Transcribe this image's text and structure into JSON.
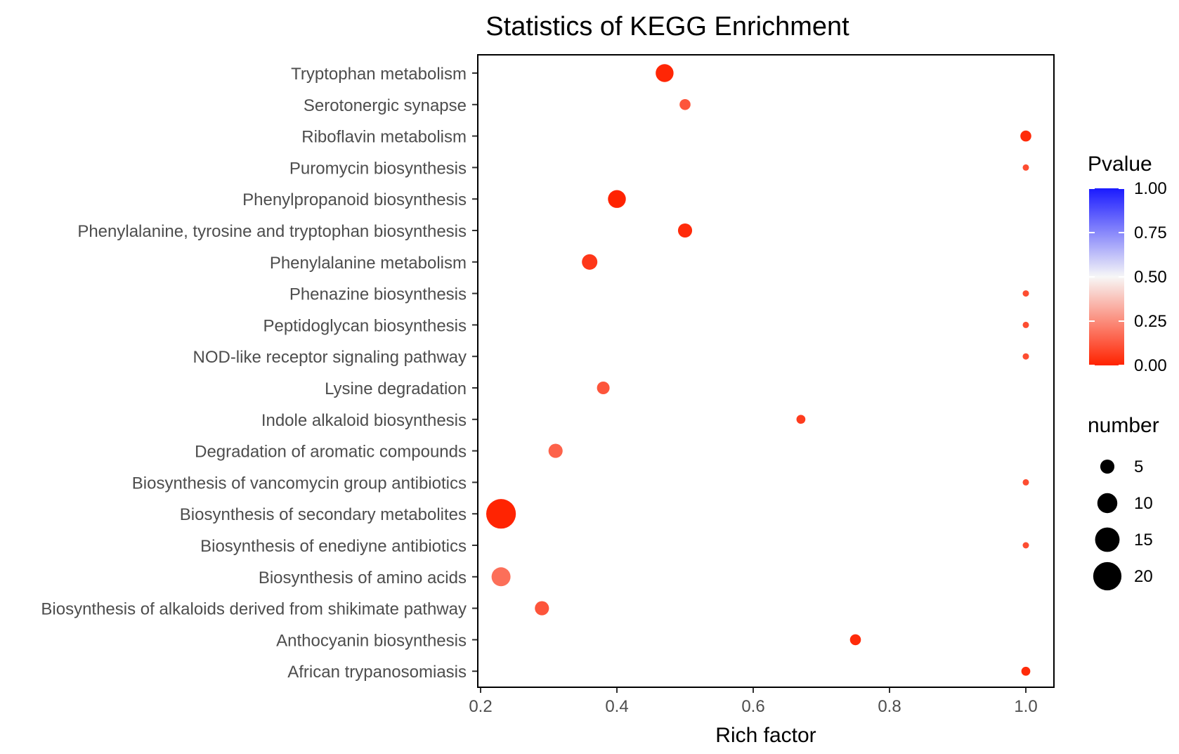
{
  "chart_data": {
    "type": "scatter",
    "title": "Statistics of KEGG Enrichment",
    "xlabel": "Rich factor",
    "ylabel": "",
    "xlim": [
      0.2,
      1.0
    ],
    "xticks": [
      0.2,
      0.4,
      0.6,
      0.8,
      1.0
    ],
    "xtick_labels": [
      "0.2",
      "0.4",
      "0.6",
      "0.8",
      "1.0"
    ],
    "grid": false,
    "categories": [
      "Tryptophan metabolism",
      "Serotonergic synapse",
      "Riboflavin metabolism",
      "Puromycin biosynthesis",
      "Phenylpropanoid biosynthesis",
      "Phenylalanine, tyrosine and tryptophan biosynthesis",
      "Phenylalanine metabolism",
      "Phenazine biosynthesis",
      "Peptidoglycan biosynthesis",
      "NOD-like receptor signaling pathway",
      "Lysine degradation",
      "Indole alkaloid biosynthesis",
      "Degradation of aromatic compounds",
      "Biosynthesis of vancomycin group antibiotics",
      "Biosynthesis of secondary metabolites",
      "Biosynthesis of enediyne antibiotics",
      "Biosynthesis of amino acids",
      "Biosynthesis of alkaloids derived from shikimate pathway",
      "Anthocyanin biosynthesis",
      "African trypanosomiasis"
    ],
    "points": [
      {
        "pathway": "Tryptophan metabolism",
        "rich_factor": 0.47,
        "number": 8,
        "pvalue": 0.01
      },
      {
        "pathway": "Serotonergic synapse",
        "rich_factor": 0.5,
        "number": 3,
        "pvalue": 0.12
      },
      {
        "pathway": "Riboflavin metabolism",
        "rich_factor": 1.0,
        "number": 3,
        "pvalue": 0.02
      },
      {
        "pathway": "Puromycin biosynthesis",
        "rich_factor": 1.0,
        "number": 1,
        "pvalue": 0.1
      },
      {
        "pathway": "Phenylpropanoid biosynthesis",
        "rich_factor": 0.4,
        "number": 8,
        "pvalue": 0.003
      },
      {
        "pathway": "Phenylalanine, tyrosine and tryptophan biosynthesis",
        "rich_factor": 0.5,
        "number": 5,
        "pvalue": 0.02
      },
      {
        "pathway": "Phenylalanine metabolism",
        "rich_factor": 0.36,
        "number": 6,
        "pvalue": 0.05
      },
      {
        "pathway": "Phenazine biosynthesis",
        "rich_factor": 1.0,
        "number": 1,
        "pvalue": 0.1
      },
      {
        "pathway": "Peptidoglycan biosynthesis",
        "rich_factor": 1.0,
        "number": 1,
        "pvalue": 0.1
      },
      {
        "pathway": "NOD-like receptor signaling pathway",
        "rich_factor": 1.0,
        "number": 1,
        "pvalue": 0.1
      },
      {
        "pathway": "Lysine degradation",
        "rich_factor": 0.38,
        "number": 4,
        "pvalue": 0.12
      },
      {
        "pathway": "Indole alkaloid biosynthesis",
        "rich_factor": 0.67,
        "number": 2,
        "pvalue": 0.06
      },
      {
        "pathway": "Degradation of aromatic compounds",
        "rich_factor": 0.31,
        "number": 5,
        "pvalue": 0.15
      },
      {
        "pathway": "Biosynthesis of vancomycin group antibiotics",
        "rich_factor": 1.0,
        "number": 1,
        "pvalue": 0.1
      },
      {
        "pathway": "Biosynthesis of secondary metabolites",
        "rich_factor": 0.23,
        "number": 22,
        "pvalue": 0.005
      },
      {
        "pathway": "Biosynthesis of enediyne antibiotics",
        "rich_factor": 1.0,
        "number": 1,
        "pvalue": 0.1
      },
      {
        "pathway": "Biosynthesis of amino acids",
        "rich_factor": 0.23,
        "number": 9,
        "pvalue": 0.18
      },
      {
        "pathway": "Biosynthesis of alkaloids derived from shikimate pathway",
        "rich_factor": 0.29,
        "number": 5,
        "pvalue": 0.12
      },
      {
        "pathway": "Anthocyanin biosynthesis",
        "rich_factor": 0.75,
        "number": 3,
        "pvalue": 0.02
      },
      {
        "pathway": "African trypanosomiasis",
        "rich_factor": 1.0,
        "number": 2,
        "pvalue": 0.02
      }
    ],
    "color_legend": {
      "title": "Pvalue",
      "ticks": [
        1.0,
        0.75,
        0.5,
        0.25,
        0.0
      ],
      "tick_labels": [
        "1.00",
        "0.75",
        "0.50",
        "0.25",
        "0.00"
      ],
      "low_color": "#ff2200",
      "mid_color": "#f7f7f7",
      "high_color": "#1a1aff"
    },
    "size_legend": {
      "title": "number",
      "values": [
        5,
        10,
        15,
        20
      ],
      "labels": [
        "5",
        "10",
        "15",
        "20"
      ]
    },
    "legend_position": "right"
  }
}
